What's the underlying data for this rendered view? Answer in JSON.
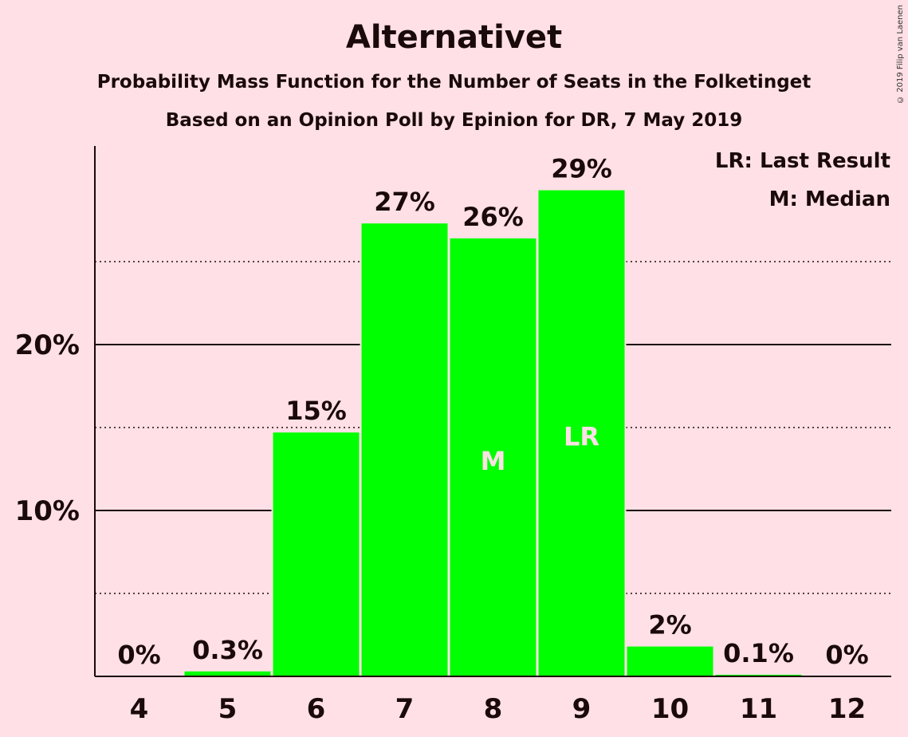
{
  "copyright": "© 2019 Filip van Laenen",
  "chart_data": {
    "type": "bar",
    "title": "Alternativet",
    "subtitle": "Probability Mass Function for the Number of Seats in the Folketinget",
    "subtitle2": "Based on an Opinion Poll by Epinion for DR, 7 May 2019",
    "categories": [
      "4",
      "5",
      "6",
      "7",
      "8",
      "9",
      "10",
      "11",
      "12"
    ],
    "values": [
      0,
      0.3,
      14.7,
      27.3,
      26.4,
      29.3,
      1.8,
      0.1,
      0
    ],
    "value_labels": [
      "0%",
      "0.3%",
      "15%",
      "27%",
      "26%",
      "29%",
      "2%",
      "0.1%",
      "0%"
    ],
    "bar_marks": [
      "",
      "",
      "",
      "",
      "M",
      "LR",
      "",
      "",
      ""
    ],
    "ylim": [
      0,
      32
    ],
    "yticks": [
      {
        "value": 10,
        "label": "10%"
      },
      {
        "value": 20,
        "label": "20%"
      }
    ],
    "minor_gridlines": [
      5,
      15,
      25
    ],
    "legend": [
      "LR: Last Result",
      "M: Median"
    ],
    "legend_position": "top-right",
    "colors": {
      "bar": "#00ff00",
      "background": "#ffe0e6",
      "text": "#1a0a0a",
      "bar_mark_text": "#ffe0e6"
    }
  }
}
